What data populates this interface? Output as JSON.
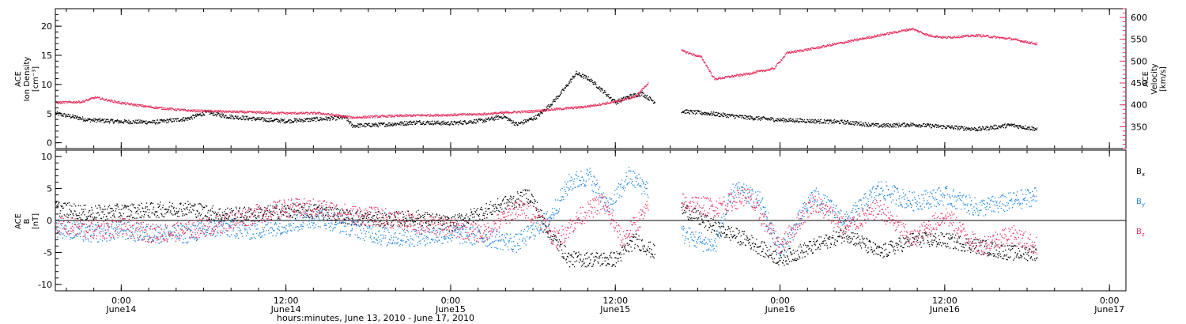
{
  "chart_data": {
    "type": "scatter",
    "xlabel": "hours:minutes, June 13, 2010 - June 17, 2010",
    "x_ticks": [
      {
        "day": 0.0,
        "time": "0:00",
        "date": "June14"
      },
      {
        "day": 0.5,
        "time": "12:00",
        "date": "June14"
      },
      {
        "day": 1.0,
        "time": "0:00",
        "date": "June15"
      },
      {
        "day": 1.5,
        "time": "12:00",
        "date": "June15"
      },
      {
        "day": 2.0,
        "time": "0:00",
        "date": "June16"
      },
      {
        "day": 2.5,
        "time": "12:00",
        "date": "June16"
      },
      {
        "day": 3.0,
        "time": "0:00",
        "date": "June17"
      }
    ],
    "xlim_days": [
      -0.2,
      3.05
    ],
    "panels": [
      {
        "id": "top",
        "left_axis": {
          "title": [
            "ACE",
            "Ion Density",
            "[cm⁻³]"
          ],
          "ylim": [
            -1,
            23
          ],
          "ticks": [
            0,
            5,
            10,
            15,
            20
          ],
          "minor_step": 1
        },
        "right_axis": {
          "title": [
            "ACE",
            "Velocity",
            "[km/s]"
          ],
          "ylim": [
            300,
            620
          ],
          "ticks": [
            350,
            400,
            450,
            500,
            550,
            600
          ],
          "minor_step": 10,
          "color": "#e8305e"
        },
        "series": [
          {
            "axis": "left",
            "color": "#000000",
            "noise": 0.35,
            "points": [
              [
                -0.2,
                5.1
              ],
              [
                -0.1,
                4.0
              ],
              [
                0.0,
                3.7
              ],
              [
                0.1,
                3.6
              ],
              [
                0.2,
                4.2
              ],
              [
                0.26,
                5.3
              ],
              [
                0.32,
                4.6
              ],
              [
                0.42,
                4.1
              ],
              [
                0.5,
                3.8
              ],
              [
                0.62,
                4.2
              ],
              [
                0.68,
                4.4
              ],
              [
                0.7,
                3.0
              ],
              [
                0.8,
                3.2
              ],
              [
                0.9,
                3.6
              ],
              [
                1.0,
                3.4
              ],
              [
                1.1,
                3.9
              ],
              [
                1.16,
                4.6
              ],
              [
                1.2,
                3.2
              ],
              [
                1.26,
                4.5
              ],
              [
                1.3,
                6.5
              ],
              [
                1.34,
                9.0
              ],
              [
                1.38,
                12.0
              ],
              [
                1.42,
                11.0
              ],
              [
                1.46,
                9.0
              ],
              [
                1.5,
                7.0
              ],
              [
                1.54,
                8.0
              ],
              [
                1.58,
                8.5
              ],
              [
                1.62,
                7.0
              ],
              [
                1.66,
                null
              ],
              [
                1.7,
                5.5
              ],
              [
                1.8,
                5.0
              ],
              [
                1.9,
                4.4
              ],
              [
                2.0,
                4.0
              ],
              [
                2.1,
                3.8
              ],
              [
                2.2,
                3.6
              ],
              [
                2.3,
                3.0
              ],
              [
                2.4,
                3.2
              ],
              [
                2.5,
                2.8
              ],
              [
                2.6,
                2.4
              ],
              [
                2.7,
                3.1
              ],
              [
                2.78,
                2.4
              ]
            ]
          },
          {
            "axis": "right",
            "color": "#e8305e",
            "noise": 2.5,
            "points": [
              [
                -0.2,
                406
              ],
              [
                -0.12,
                408
              ],
              [
                -0.08,
                418
              ],
              [
                0.0,
                405
              ],
              [
                0.1,
                395
              ],
              [
                0.2,
                388
              ],
              [
                0.3,
                386
              ],
              [
                0.4,
                384
              ],
              [
                0.5,
                382
              ],
              [
                0.6,
                382
              ],
              [
                0.66,
                376
              ],
              [
                0.7,
                372
              ],
              [
                0.8,
                375
              ],
              [
                0.9,
                377
              ],
              [
                1.0,
                378
              ],
              [
                1.1,
                380
              ],
              [
                1.18,
                384
              ],
              [
                1.24,
                386
              ],
              [
                1.3,
                390
              ],
              [
                1.4,
                396
              ],
              [
                1.5,
                408
              ],
              [
                1.56,
                420
              ],
              [
                1.6,
                452
              ],
              [
                1.66,
                null
              ],
              [
                1.7,
                525
              ],
              [
                1.76,
                510
              ],
              [
                1.8,
                460
              ],
              [
                1.9,
                472
              ],
              [
                1.98,
                484
              ],
              [
                2.02,
                520
              ],
              [
                2.1,
                530
              ],
              [
                2.2,
                545
              ],
              [
                2.3,
                560
              ],
              [
                2.4,
                575
              ],
              [
                2.45,
                560
              ],
              [
                2.5,
                555
              ],
              [
                2.6,
                560
              ],
              [
                2.7,
                552
              ],
              [
                2.78,
                540
              ]
            ]
          }
        ]
      },
      {
        "id": "bottom",
        "left_axis": {
          "title": [
            "ACE",
            "B",
            "[nT]"
          ],
          "ylim": [
            -11,
            11
          ],
          "ticks": [
            -10,
            -5,
            0,
            5,
            10
          ],
          "minor_step": 1
        },
        "zero_line": true,
        "legend": [
          {
            "label": "Bx",
            "base": "B",
            "sub": "x",
            "color": "#000000"
          },
          {
            "label": "By",
            "base": "B",
            "sub": "y",
            "color": "#1f86e0"
          },
          {
            "label": "Bz",
            "base": "B",
            "sub": "z",
            "color": "#e8305e"
          }
        ],
        "series": [
          {
            "name": "Bx",
            "color": "#000000",
            "noise": 1.2,
            "points": [
              [
                -0.2,
                2.0
              ],
              [
                -0.1,
                1.2
              ],
              [
                0.0,
                1.5
              ],
              [
                0.1,
                1.7
              ],
              [
                0.2,
                2.0
              ],
              [
                0.3,
                1.0
              ],
              [
                0.4,
                1.0
              ],
              [
                0.5,
                1.6
              ],
              [
                0.6,
                1.5
              ],
              [
                0.7,
                0.5
              ],
              [
                0.8,
                0.2
              ],
              [
                0.9,
                0.5
              ],
              [
                1.0,
                -0.5
              ],
              [
                1.1,
                1.5
              ],
              [
                1.18,
                3.0
              ],
              [
                1.24,
                4.0
              ],
              [
                1.3,
                -2.0
              ],
              [
                1.36,
                -6.0
              ],
              [
                1.42,
                -6.0
              ],
              [
                1.5,
                -6.0
              ],
              [
                1.56,
                -3.0
              ],
              [
                1.62,
                -5.0
              ],
              [
                1.66,
                null
              ],
              [
                1.7,
                2.0
              ],
              [
                1.8,
                -1.0
              ],
              [
                1.9,
                -3.0
              ],
              [
                2.0,
                -6.0
              ],
              [
                2.1,
                -4.0
              ],
              [
                2.2,
                -2.0
              ],
              [
                2.3,
                -5.0
              ],
              [
                2.4,
                -3.0
              ],
              [
                2.5,
                -3.0
              ],
              [
                2.6,
                -4.0
              ],
              [
                2.7,
                -5.0
              ],
              [
                2.78,
                -5.0
              ]
            ]
          },
          {
            "name": "By",
            "color": "#1f86e0",
            "noise": 1.5,
            "points": [
              [
                -0.2,
                -1.0
              ],
              [
                -0.1,
                -2.0
              ],
              [
                0.0,
                -1.5
              ],
              [
                0.1,
                -2.0
              ],
              [
                0.2,
                -2.0
              ],
              [
                0.3,
                -1.0
              ],
              [
                0.4,
                -1.5
              ],
              [
                0.5,
                -0.5
              ],
              [
                0.6,
                0.5
              ],
              [
                0.7,
                -1.0
              ],
              [
                0.8,
                -2.5
              ],
              [
                0.9,
                -2.5
              ],
              [
                1.0,
                -2.0
              ],
              [
                1.1,
                -2.5
              ],
              [
                1.2,
                -3.5
              ],
              [
                1.3,
                0.5
              ],
              [
                1.36,
                6.0
              ],
              [
                1.42,
                7.0
              ],
              [
                1.48,
                2.0
              ],
              [
                1.54,
                7.0
              ],
              [
                1.6,
                5.0
              ],
              [
                1.66,
                null
              ],
              [
                1.7,
                -2.0
              ],
              [
                1.8,
                -4.0
              ],
              [
                1.86,
                5.0
              ],
              [
                1.94,
                3.0
              ],
              [
                2.0,
                -5.0
              ],
              [
                2.1,
                4.0
              ],
              [
                2.2,
                0.0
              ],
              [
                2.3,
                5.0
              ],
              [
                2.4,
                3.0
              ],
              [
                2.5,
                4.0
              ],
              [
                2.6,
                2.0
              ],
              [
                2.7,
                3.0
              ],
              [
                2.78,
                4.0
              ]
            ]
          },
          {
            "name": "Bz",
            "color": "#e8305e",
            "noise": 1.5,
            "points": [
              [
                -0.2,
                -0.5
              ],
              [
                -0.1,
                -1.5
              ],
              [
                0.0,
                -1.0
              ],
              [
                0.1,
                -2.0
              ],
              [
                0.2,
                -1.5
              ],
              [
                0.3,
                -0.5
              ],
              [
                0.4,
                1.0
              ],
              [
                0.5,
                2.0
              ],
              [
                0.6,
                2.0
              ],
              [
                0.7,
                1.0
              ],
              [
                0.8,
                0.5
              ],
              [
                0.9,
                -0.5
              ],
              [
                1.0,
                -1.0
              ],
              [
                1.1,
                -2.0
              ],
              [
                1.2,
                2.0
              ],
              [
                1.26,
                1.0
              ],
              [
                1.32,
                -3.0
              ],
              [
                1.4,
                1.0
              ],
              [
                1.46,
                3.0
              ],
              [
                1.52,
                -3.0
              ],
              [
                1.6,
                2.0
              ],
              [
                1.66,
                null
              ],
              [
                1.7,
                3.0
              ],
              [
                1.8,
                2.0
              ],
              [
                1.9,
                4.0
              ],
              [
                2.0,
                -4.0
              ],
              [
                2.1,
                3.0
              ],
              [
                2.2,
                -1.0
              ],
              [
                2.3,
                2.0
              ],
              [
                2.4,
                -3.0
              ],
              [
                2.5,
                1.0
              ],
              [
                2.6,
                -4.0
              ],
              [
                2.7,
                -2.0
              ],
              [
                2.78,
                -4.0
              ]
            ]
          }
        ]
      }
    ]
  }
}
